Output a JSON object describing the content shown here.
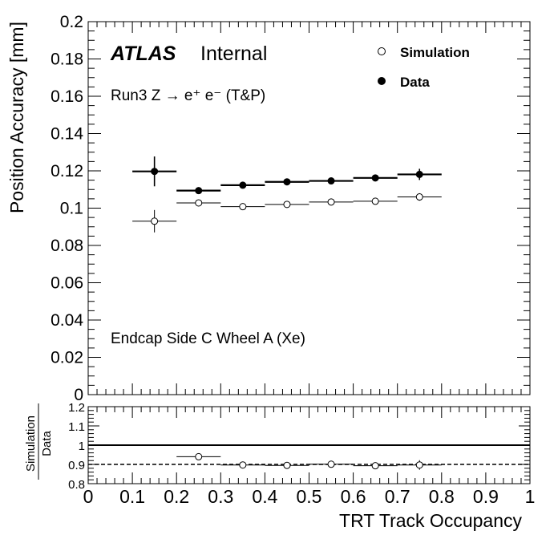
{
  "chart_data": [
    {
      "type": "scatter",
      "panel": "main",
      "atlas_label": "ATLAS",
      "atlas_status": "Internal",
      "annotation_process": "Run3 Z → e⁺ e⁻ (T&P)",
      "annotation_region": "Endcap Side C Wheel A (Xe)",
      "ylabel": "Position Accuracy [mm]",
      "xlabel": "",
      "xlim": [
        0,
        1
      ],
      "ylim": [
        0,
        0.2
      ],
      "yticks": [
        "0",
        "0.02",
        "0.04",
        "0.06",
        "0.08",
        "0.1",
        "0.12",
        "0.14",
        "0.16",
        "0.18",
        "0.2"
      ],
      "legend_position": "top-right",
      "series": [
        {
          "name": "Simulation",
          "marker": "open-circle",
          "x": [
            0.15,
            0.25,
            0.35,
            0.45,
            0.55,
            0.65,
            0.75
          ],
          "x_halfwidth": [
            0.05,
            0.05,
            0.05,
            0.05,
            0.05,
            0.05,
            0.05
          ],
          "y": [
            0.093,
            0.1028,
            0.1008,
            0.102,
            0.1033,
            0.1037,
            0.106
          ],
          "y_err": [
            0.006,
            0.0012,
            0.001,
            0.001,
            0.001,
            0.001,
            0.002
          ]
        },
        {
          "name": "Data",
          "marker": "filled-circle",
          "x": [
            0.15,
            0.25,
            0.35,
            0.45,
            0.55,
            0.65,
            0.75
          ],
          "x_halfwidth": [
            0.05,
            0.05,
            0.05,
            0.05,
            0.05,
            0.05,
            0.05
          ],
          "y": [
            0.1197,
            0.1094,
            0.1123,
            0.1141,
            0.1146,
            0.1162,
            0.1181
          ],
          "y_err": [
            0.008,
            0.0012,
            0.001,
            0.001,
            0.001,
            0.001,
            0.003
          ]
        }
      ]
    },
    {
      "type": "scatter",
      "panel": "ratio",
      "ylabel_numerator": "Simulation",
      "ylabel_denominator": "Data",
      "xlabel": "TRT Track Occupancy",
      "xlim": [
        0,
        1
      ],
      "ylim": [
        0.8,
        1.2
      ],
      "xticks": [
        "0",
        "0.1",
        "0.2",
        "0.3",
        "0.4",
        "0.5",
        "0.6",
        "0.7",
        "0.8",
        "0.9",
        "1"
      ],
      "yticks": [
        "0.8",
        "0.9",
        "1",
        "1.1",
        "1.2"
      ],
      "reference_lines": [
        1.0,
        0.9
      ],
      "series": [
        {
          "name": "Simulation/Data",
          "marker": "open-circle",
          "x": [
            0.25,
            0.35,
            0.45,
            0.55,
            0.65,
            0.75
          ],
          "x_halfwidth": [
            0.05,
            0.05,
            0.05,
            0.05,
            0.05,
            0.05
          ],
          "y": [
            0.94,
            0.897,
            0.895,
            0.901,
            0.893,
            0.897
          ],
          "y_err": [
            0.017,
            0.003,
            0.003,
            0.004,
            0.004,
            0.025
          ]
        }
      ]
    }
  ]
}
